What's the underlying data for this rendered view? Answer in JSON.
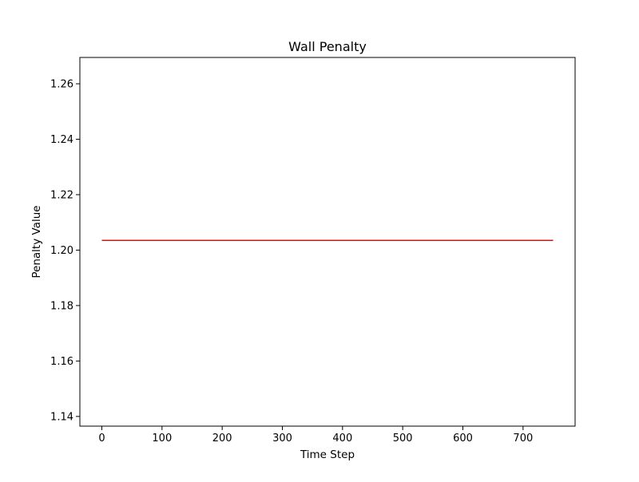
{
  "chart_data": {
    "type": "line",
    "title": "Wall Penalty",
    "xlabel": "Time Step",
    "ylabel": "Penalty Value",
    "xlim": [
      -36.5,
      786.5
    ],
    "ylim": [
      1.1365,
      1.2695
    ],
    "xticks": [
      0,
      100,
      200,
      300,
      400,
      500,
      600,
      700
    ],
    "yticks": [
      1.14,
      1.16,
      1.18,
      1.2,
      1.22,
      1.24,
      1.26
    ],
    "ytick_labels": [
      "1.14",
      "1.16",
      "1.18",
      "1.20",
      "1.22",
      "1.24",
      "1.26"
    ],
    "series": [
      {
        "color": "#ff0000",
        "x": [
          0,
          750
        ],
        "y": [
          1.2035,
          1.2035
        ]
      }
    ],
    "grid": false,
    "legend": "none"
  }
}
